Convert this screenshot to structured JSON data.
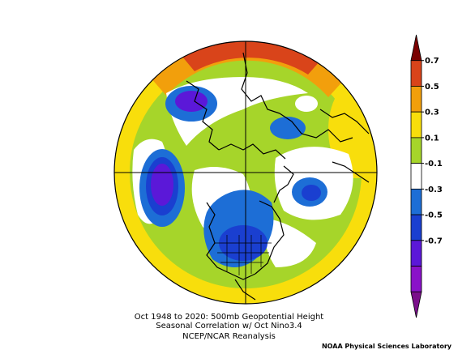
{
  "caption": {
    "line1": "Oct 1948 to 2020: 500mb Geopotential Height",
    "line2": "Seasonal Correlation w/ Oct Nino3.4",
    "line3": "NCEP/NCAR Reanalysis"
  },
  "footer": "NOAA Physical Sciences Laboratory",
  "colorbar": {
    "labels": [
      "0.7",
      "0.5",
      "0.3",
      "0.1",
      "-0.1",
      "-0.3",
      "-0.5",
      "-0.7"
    ],
    "colors": [
      "#7a0000",
      "#d9441a",
      "#f29f0c",
      "#f8de0c",
      "#a6d52a",
      "#ffffff",
      "#1d6ed6",
      "#1a3fd0",
      "#5b18d8",
      "#8a12c9",
      "#7a0f8a"
    ]
  },
  "map": {
    "projection": "north polar stereographic",
    "field": "correlation",
    "range": [
      -0.7,
      0.7
    ],
    "contour_interval": 0.2
  }
}
